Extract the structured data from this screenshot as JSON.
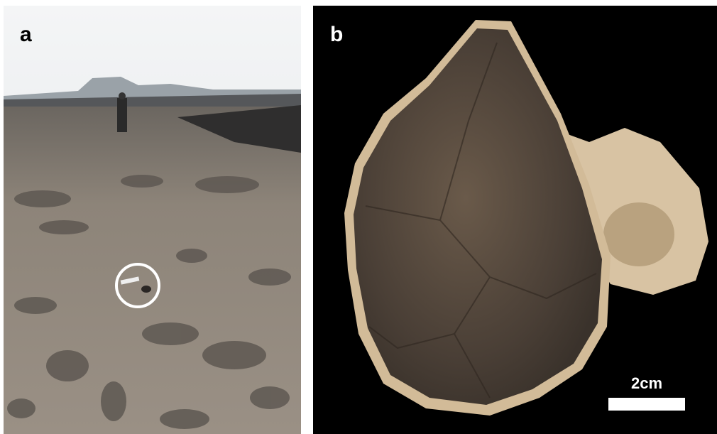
{
  "panels": [
    {
      "label": "a"
    },
    {
      "label": "b",
      "scale_bar": "2cm"
    }
  ]
}
